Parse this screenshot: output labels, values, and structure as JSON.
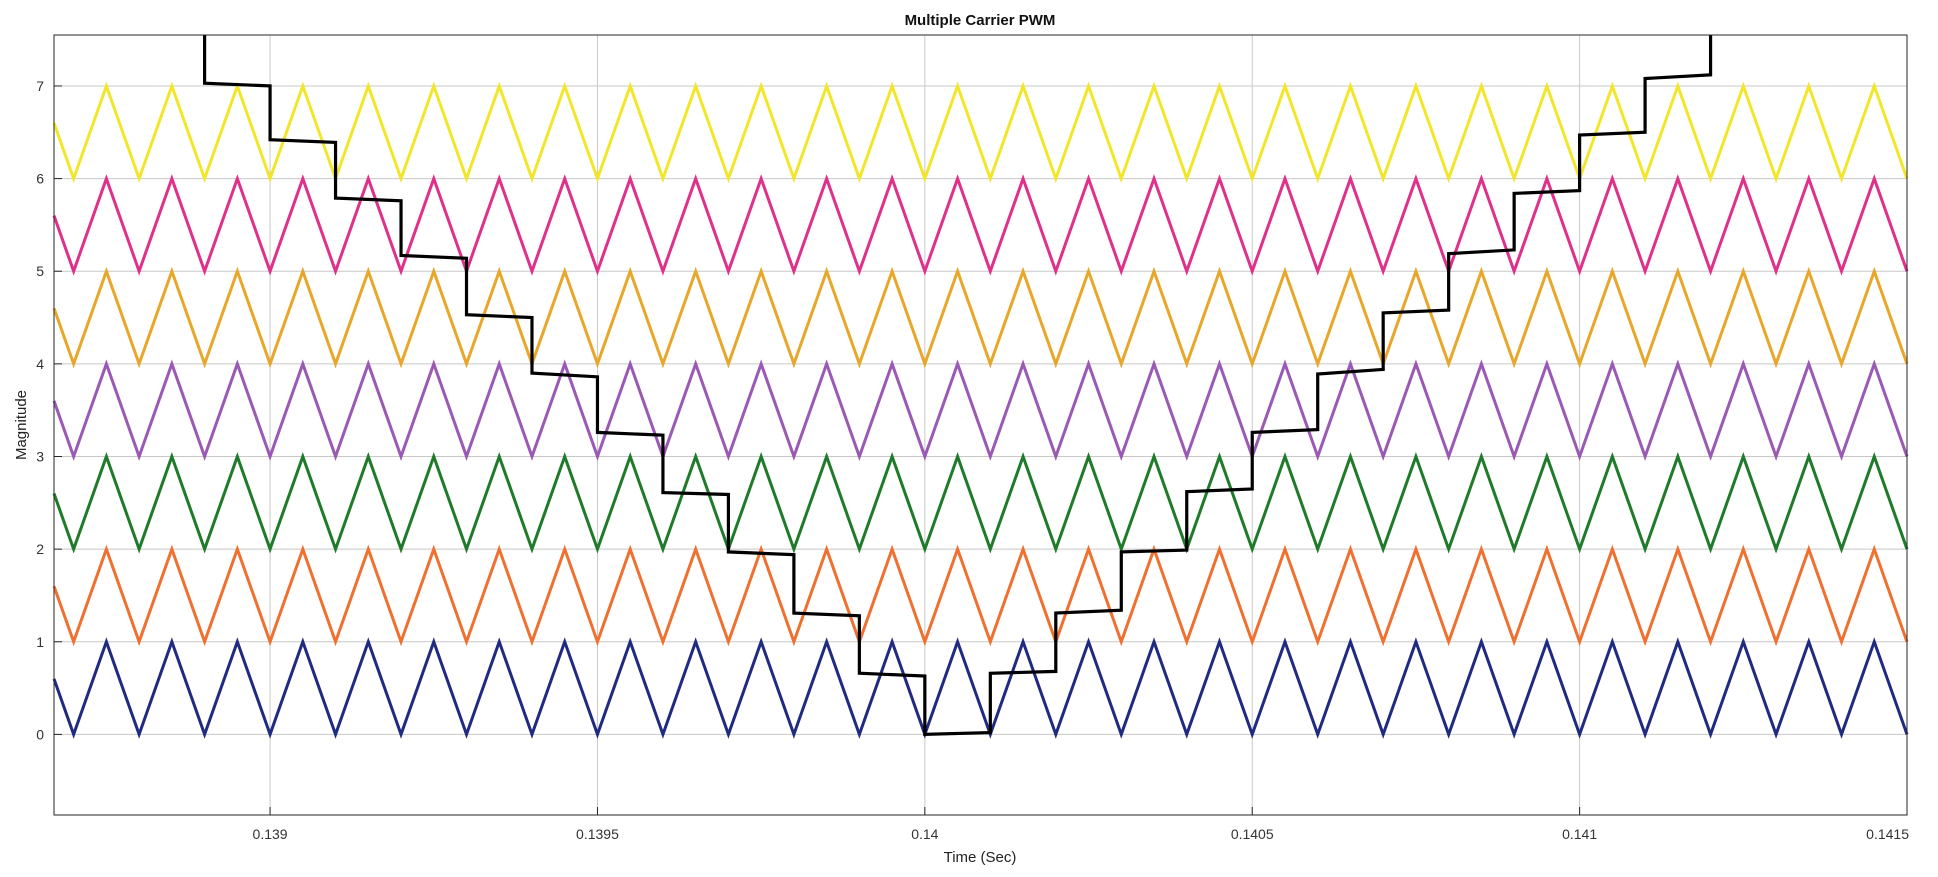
{
  "chart_data": {
    "type": "line",
    "title": "Multiple Carrier PWM",
    "xlabel": "Time (Sec)",
    "ylabel": "Magnitude",
    "xlim": [
      0.13867,
      0.1415
    ],
    "ylim": [
      -0.87,
      7.55
    ],
    "x_ticks": [
      0.139,
      0.1395,
      0.14,
      0.1405,
      0.141,
      0.1415
    ],
    "x_tick_labels": [
      "0.139",
      "0.1395",
      "0.14",
      "0.1405",
      "0.141",
      "0.1415"
    ],
    "y_ticks": [
      0,
      1,
      2,
      3,
      4,
      5,
      6,
      7
    ],
    "y_tick_labels": [
      "0",
      "1",
      "2",
      "3",
      "4",
      "5",
      "6",
      "7"
    ],
    "grid": true,
    "legend": false,
    "carrier_period": 0.0001,
    "carrier_first_peak_x": 0.13875,
    "series": [
      {
        "kind": "carrier",
        "color": "#1f2a80",
        "min": 0,
        "max": 1
      },
      {
        "kind": "carrier",
        "color": "#f07030",
        "min": 1,
        "max": 2
      },
      {
        "kind": "carrier",
        "color": "#1f7a2a",
        "min": 2,
        "max": 3
      },
      {
        "kind": "carrier",
        "color": "#9b59b6",
        "min": 3,
        "max": 4
      },
      {
        "kind": "carrier",
        "color": "#e8a72a",
        "min": 4,
        "max": 5
      },
      {
        "kind": "carrier",
        "color": "#e0308a",
        "min": 5,
        "max": 6
      },
      {
        "kind": "carrier",
        "color": "#f2e62a",
        "min": 6,
        "max": 7
      },
      {
        "kind": "reference",
        "color": "#000000",
        "x": [
          0.1389,
          0.1389,
          0.139,
          0.139,
          0.1391,
          0.1391,
          0.1392,
          0.1392,
          0.1393,
          0.1393,
          0.1394,
          0.1394,
          0.1395,
          0.1395,
          0.1396,
          0.1396,
          0.1397,
          0.1397,
          0.1398,
          0.1398,
          0.1399,
          0.1399,
          0.14,
          0.14,
          0.1401,
          0.1401,
          0.1402,
          0.1402,
          0.1403,
          0.1403,
          0.1404,
          0.1404,
          0.1405,
          0.1405,
          0.1406,
          0.1406,
          0.1407,
          0.1407,
          0.1408,
          0.1408,
          0.1409,
          0.1409,
          0.141,
          0.141,
          0.1411,
          0.1411,
          0.1412,
          0.1412
        ],
        "y": [
          7.55,
          7.03,
          7.0,
          6.42,
          6.39,
          5.79,
          5.76,
          5.17,
          5.14,
          4.53,
          4.5,
          3.9,
          3.86,
          3.26,
          3.23,
          2.61,
          2.59,
          1.97,
          1.94,
          1.31,
          1.28,
          0.66,
          0.63,
          0.0,
          0.02,
          0.66,
          0.68,
          1.31,
          1.34,
          1.97,
          1.99,
          2.62,
          2.65,
          3.26,
          3.29,
          3.89,
          3.94,
          4.55,
          4.58,
          5.19,
          5.23,
          5.84,
          5.87,
          6.47,
          6.5,
          7.08,
          7.12,
          7.55
        ]
      }
    ]
  }
}
